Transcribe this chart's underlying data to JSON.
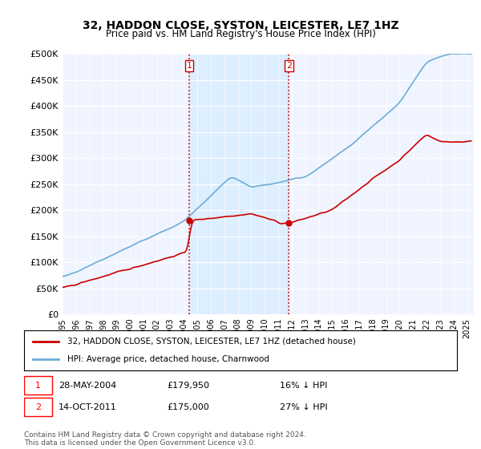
{
  "title": "32, HADDON CLOSE, SYSTON, LEICESTER, LE7 1HZ",
  "subtitle": "Price paid vs. HM Land Registry's House Price Index (HPI)",
  "ylabel_ticks": [
    "£0",
    "£50K",
    "£100K",
    "£150K",
    "£200K",
    "£250K",
    "£300K",
    "£350K",
    "£400K",
    "£450K",
    "£500K"
  ],
  "ytick_values": [
    0,
    50000,
    100000,
    150000,
    200000,
    250000,
    300000,
    350000,
    400000,
    450000,
    500000
  ],
  "xlim_start": 1995.0,
  "xlim_end": 2025.5,
  "ylim_min": 0,
  "ylim_max": 500000,
  "hpi_color": "#6baed6",
  "price_color": "#cc0000",
  "vline_color": "#cc0000",
  "vline_style": "dotted",
  "shade_color": "#ddeeff",
  "transaction1_date": 2004.41,
  "transaction1_price": 179950,
  "transaction1_label": "1",
  "transaction2_date": 2011.79,
  "transaction2_price": 175000,
  "transaction2_label": "2",
  "legend_line1": "32, HADDON CLOSE, SYSTON, LEICESTER, LE7 1HZ (detached house)",
  "legend_line2": "HPI: Average price, detached house, Charnwood",
  "note1_label": "1",
  "note1_date": "28-MAY-2004",
  "note1_price": "£179,950",
  "note1_pct": "16% ↓ HPI",
  "note2_label": "2",
  "note2_date": "14-OCT-2011",
  "note2_price": "£175,000",
  "note2_pct": "27% ↓ HPI",
  "footer": "Contains HM Land Registry data © Crown copyright and database right 2024.\nThis data is licensed under the Open Government Licence v3.0.",
  "background_color": "#ffffff",
  "plot_bg_color": "#f0f4ff"
}
